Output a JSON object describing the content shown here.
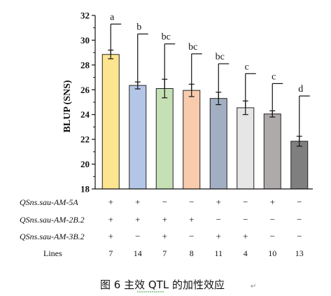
{
  "chart_data": {
    "type": "bar",
    "ylabel": "BLUP (SNS)",
    "ylim": [
      18,
      32
    ],
    "yticks": [
      18,
      20,
      22,
      24,
      26,
      28,
      30,
      32
    ],
    "grid": false,
    "bars": [
      {
        "value": 28.85,
        "err": 0.35,
        "sd_top": 31.3,
        "letter": "a",
        "color": "#fde58f"
      },
      {
        "value": 26.35,
        "err": 0.28,
        "sd_top": 30.5,
        "letter": "b",
        "color": "#b4c6e7"
      },
      {
        "value": 26.1,
        "err": 0.75,
        "sd_top": 29.7,
        "letter": "bc",
        "color": "#c5e0b4"
      },
      {
        "value": 25.95,
        "err": 0.5,
        "sd_top": 28.9,
        "letter": "bc",
        "color": "#f8cbad"
      },
      {
        "value": 25.3,
        "err": 0.5,
        "sd_top": 28.1,
        "letter": "bc",
        "color": "#a2afc3"
      },
      {
        "value": 24.55,
        "err": 0.55,
        "sd_top": 27.3,
        "letter": "c",
        "color": "#e7e6e6"
      },
      {
        "value": 24.05,
        "err": 0.25,
        "sd_top": 26.5,
        "letter": "c",
        "color": "#aeaaaa"
      },
      {
        "value": 21.85,
        "err": 0.4,
        "sd_top": 25.5,
        "letter": "d",
        "color": "#7f7f7f"
      }
    ],
    "table": {
      "rows": [
        {
          "label": "QSns.sau-AM-5A",
          "cells": [
            "+",
            "+",
            "−",
            "−",
            "+",
            "−",
            "+",
            "−"
          ]
        },
        {
          "label": "QSns.sau-AM-2B.2",
          "cells": [
            "+",
            "+",
            "+",
            "+",
            "−",
            "−",
            "−",
            "−"
          ]
        },
        {
          "label": "QSns.sau-AM-3B.2",
          "cells": [
            "+",
            "−",
            "+",
            "−",
            "+",
            "+",
            "−",
            "−"
          ]
        }
      ],
      "lines_label": "Lines",
      "lines": [
        "7",
        "14",
        "7",
        "8",
        "11",
        "4",
        "10",
        "13"
      ]
    },
    "caption": "图 6 主效 QTL 的加性效应"
  }
}
